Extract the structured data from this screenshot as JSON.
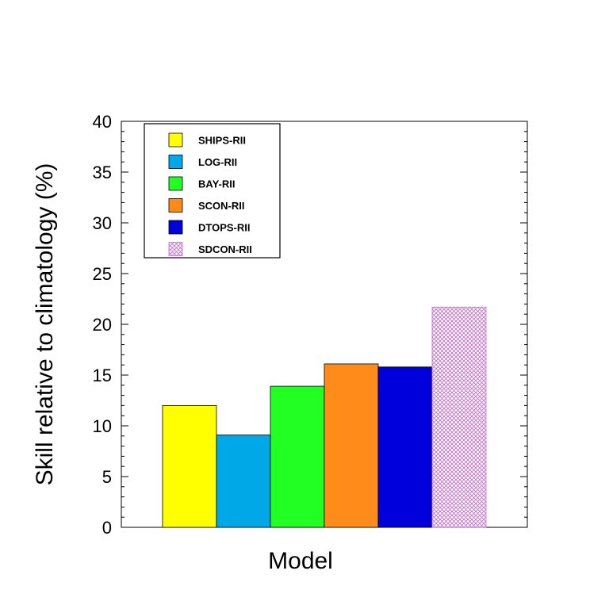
{
  "chart_data": {
    "type": "bar",
    "title": "",
    "xlabel": "Model",
    "ylabel": "Skill relative to climatology (%)",
    "ylim": [
      0,
      40
    ],
    "yticks": [
      0,
      5,
      10,
      15,
      20,
      25,
      30,
      35,
      40
    ],
    "grid": false,
    "legend_position": "top-left",
    "series": [
      {
        "name": "SHIPS-RII",
        "value": 12.0,
        "color": "#ffff00",
        "pattern": "solid"
      },
      {
        "name": "LOG-RII",
        "value": 9.1,
        "color": "#00a8e8",
        "pattern": "solid"
      },
      {
        "name": "BAY-RII",
        "value": 13.9,
        "color": "#22ff22",
        "pattern": "solid"
      },
      {
        "name": "SCON-RII",
        "value": 16.1,
        "color": "#ff8c1a",
        "pattern": "solid"
      },
      {
        "name": "DTOPS-RII",
        "value": 15.8,
        "color": "#0000dd",
        "pattern": "solid"
      },
      {
        "name": "SDCON-RII",
        "value": 21.7,
        "color": "#c070c8",
        "pattern": "crosshatch",
        "label_color": "#b05ac0"
      }
    ]
  }
}
